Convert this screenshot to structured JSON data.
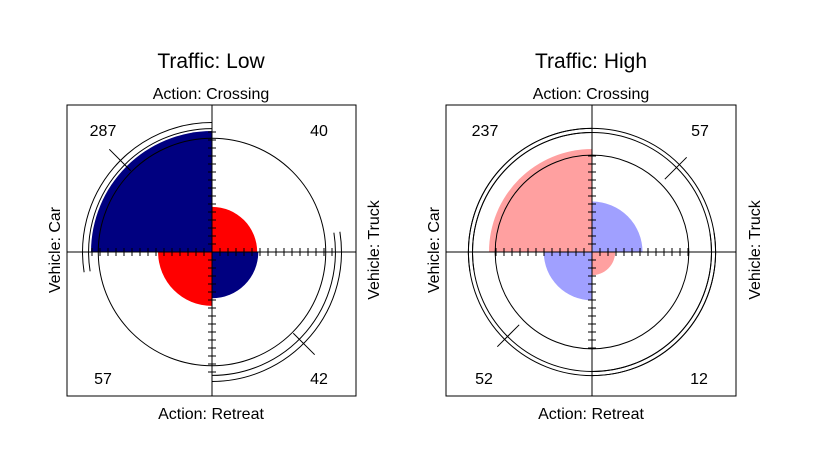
{
  "chart_data": [
    {
      "type": "fourfold",
      "title": "Traffic: Low",
      "top_label": "Action: Crossing",
      "bottom_label": "Action: Retreat",
      "left_label": "Vehicle: Car",
      "right_label": "Vehicle: Truck",
      "cells": {
        "car_crossing": 287,
        "truck_crossing": 40,
        "car_retreat": 57,
        "truck_retreat": 42
      },
      "cell_labels": {
        "car_crossing": "287",
        "truck_crossing": "40",
        "car_retreat": "57",
        "truck_retreat": "42"
      },
      "positive_color": "#000080",
      "negative_color": "#ff0000"
    },
    {
      "type": "fourfold",
      "title": "Traffic: High",
      "top_label": "Action: Crossing",
      "bottom_label": "Action: Retreat",
      "left_label": "Vehicle: Car",
      "right_label": "Vehicle: Truck",
      "cells": {
        "car_crossing": 237,
        "truck_crossing": 57,
        "car_retreat": 52,
        "truck_retreat": 12
      },
      "cell_labels": {
        "car_crossing": "237",
        "truck_crossing": "57",
        "car_retreat": "52",
        "truck_retreat": "12"
      },
      "positive_color": "#a0a0ff",
      "negative_color": "#ffa0a0"
    }
  ]
}
